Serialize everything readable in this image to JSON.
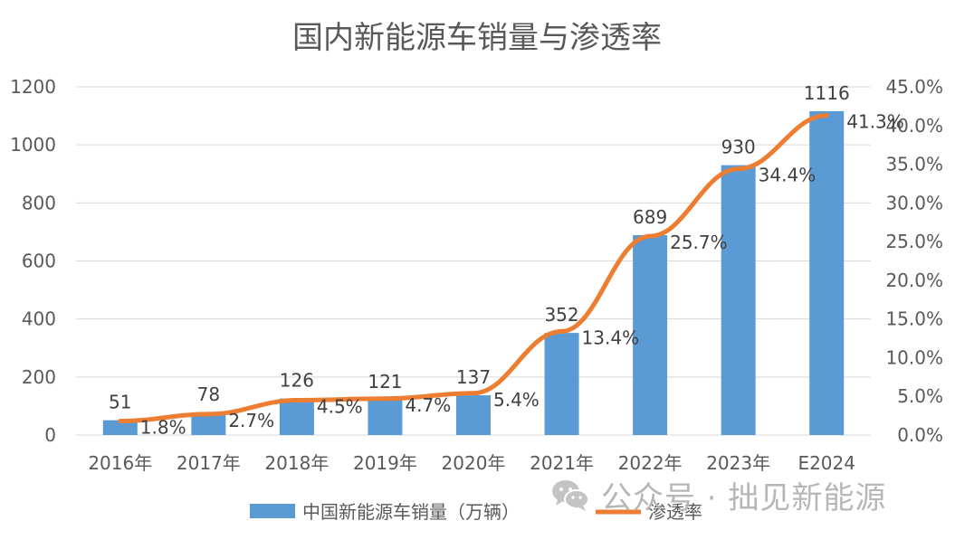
{
  "chart_data": {
    "type": "bar+line",
    "title": "国内新能源车销量与渗透率",
    "categories": [
      "2016年",
      "2017年",
      "2018年",
      "2019年",
      "2020年",
      "2021年",
      "2022年",
      "2023年",
      "E2024"
    ],
    "series": [
      {
        "name": "中国新能源车销量（万辆）",
        "type": "bar",
        "axis": "left",
        "values": [
          51,
          78,
          126,
          121,
          137,
          352,
          689,
          930,
          1116
        ],
        "labels": [
          "51",
          "78",
          "126",
          "121",
          "137",
          "352",
          "689",
          "930",
          "1116"
        ],
        "color": "#5B9BD5"
      },
      {
        "name": "渗透率",
        "type": "line",
        "axis": "right",
        "values": [
          1.8,
          2.7,
          4.5,
          4.7,
          5.4,
          13.4,
          25.7,
          34.4,
          41.3
        ],
        "labels": [
          "1.8%",
          "2.7%",
          "4.5%",
          "4.7%",
          "5.4%",
          "13.4%",
          "25.7%",
          "34.4%",
          "41.3%"
        ],
        "color": "#ED7D31"
      }
    ],
    "y_left": {
      "min": 0,
      "max": 1200,
      "ticks": [
        "0",
        "200",
        "400",
        "600",
        "800",
        "1000",
        "1200"
      ]
    },
    "y_right": {
      "min": 0,
      "max": 45,
      "ticks": [
        "0.0%",
        "5.0%",
        "10.0%",
        "15.0%",
        "20.0%",
        "25.0%",
        "30.0%",
        "35.0%",
        "40.0%",
        "45.0%"
      ]
    },
    "grid": true,
    "legend": "bottom"
  },
  "watermark": {
    "text": "公众号 · 拙见新能源"
  }
}
